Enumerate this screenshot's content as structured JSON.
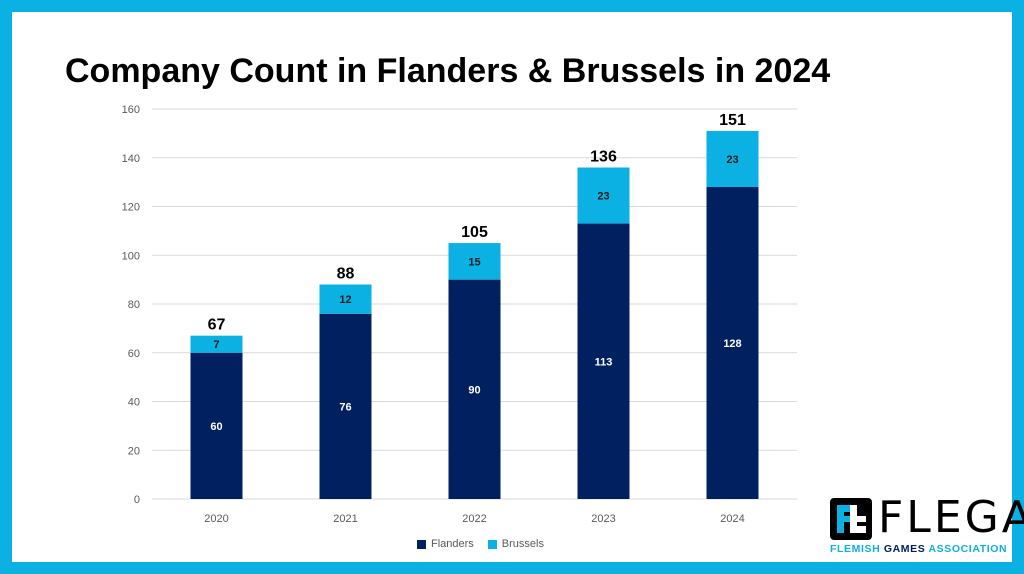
{
  "slide": {
    "title": "Company Count in Flanders & Brussels in 2024"
  },
  "chart_data": {
    "type": "bar",
    "stacked": true,
    "title": "Company Count in Flanders & Brussels in 2024",
    "xlabel": "",
    "ylabel": "",
    "categories": [
      "2020",
      "2021",
      "2022",
      "2023",
      "2024"
    ],
    "series": [
      {
        "name": "Flanders",
        "values": [
          60,
          76,
          90,
          113,
          128
        ],
        "color": "#002060"
      },
      {
        "name": "Brussels",
        "values": [
          7,
          12,
          15,
          23,
          23
        ],
        "color": "#0bb1e3"
      }
    ],
    "totals": [
      67,
      88,
      105,
      136,
      151
    ],
    "ylim": [
      0,
      160
    ],
    "yticks": [
      0,
      20,
      40,
      60,
      80,
      100,
      120,
      140,
      160
    ],
    "grid": true,
    "legend_position": "bottom"
  },
  "logo": {
    "word": "FLEGA",
    "tagline_1": "FLEMISH",
    "tagline_2": "GAMES",
    "tagline_3": "ASSOCIATION",
    "colors": {
      "accent": "#0bb1e3",
      "dark": "#002060"
    }
  }
}
